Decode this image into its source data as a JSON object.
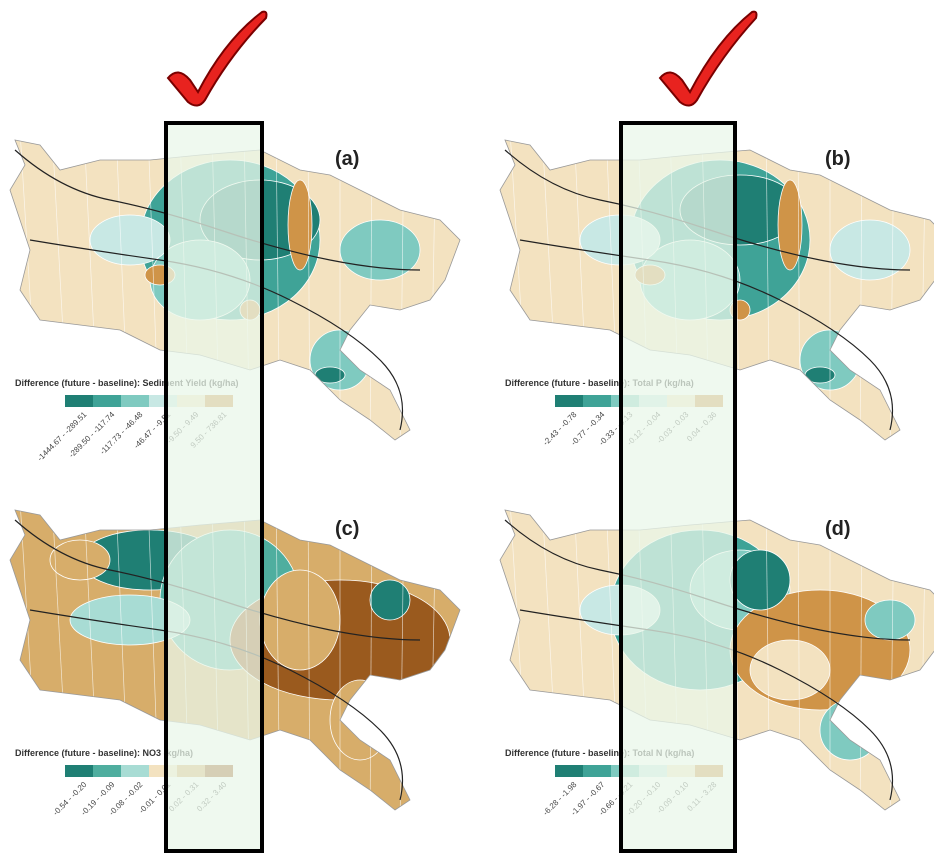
{
  "panels": [
    {
      "label": "(a)",
      "legend_title": "Difference (future - baseline): Sediment Yield (kg/ha)",
      "classes": [
        "-1444.67 - -289.51",
        "-289.50 - -117.74",
        "-117.73 - -46.48",
        "-46.47 - -9.51",
        "-9.50 - 9.49",
        "9.50 - 736.81"
      ],
      "colors": [
        "#1f7f74",
        "#3fa397",
        "#7fcac0",
        "#c8e8e4",
        "#f3e2c0",
        "#cf9448"
      ]
    },
    {
      "label": "(b)",
      "legend_title": "Difference (future - baseline): Total P (kg/ha)",
      "classes": [
        "-2.43 - -0.78",
        "-0.77 - -0.34",
        "-0.33 - -0.13",
        "-0.12 - -0.04",
        "-0.03 - 0.03",
        "0.04 - 0.36"
      ],
      "colors": [
        "#1f7f74",
        "#3fa397",
        "#7fcac0",
        "#c8e8e4",
        "#f3e2c0",
        "#cf9448"
      ]
    },
    {
      "label": "(c)",
      "legend_title": "Difference (future - baseline): NO3 (kg/ha)",
      "classes": [
        "-0.54 - -0.20",
        "-0.19 - -0.09",
        "-0.08 - -0.02",
        "-0.01 - 0.01",
        "0.02 - 0.31",
        "0.32 - 3.40"
      ],
      "colors": [
        "#1f7f74",
        "#4fae9f",
        "#a8dcd4",
        "#f3e2c0",
        "#d7ad6a",
        "#9a5a1e"
      ]
    },
    {
      "label": "(d)",
      "legend_title": "Difference (future - baseline): Total N (kg/ha)",
      "classes": [
        "-6.28 - -1.98",
        "-1.97 - -0.67",
        "-0.66 - -0.21",
        "-0.20 - -0.10",
        "-0.09 - 0.10",
        "0.11 - 3.28"
      ],
      "colors": [
        "#1f7f74",
        "#3fa397",
        "#7fcac0",
        "#c8e8e4",
        "#f3e2c0",
        "#cf9448"
      ]
    }
  ]
}
